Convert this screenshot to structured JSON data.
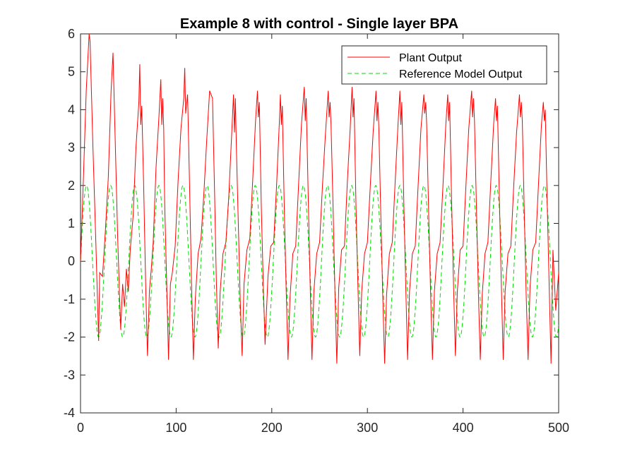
{
  "chart_data": {
    "type": "line",
    "title": "Example 8 with control - Single layer BPA",
    "xlabel": "",
    "ylabel": "",
    "xlim": [
      0,
      500
    ],
    "ylim": [
      -4,
      6
    ],
    "x_ticks": [
      0,
      100,
      200,
      300,
      400,
      500
    ],
    "y_ticks": [
      -4,
      -3,
      -2,
      -1,
      0,
      1,
      2,
      3,
      4,
      5,
      6
    ],
    "grid": false,
    "legend_position": "top-right",
    "series": [
      {
        "name": "Plant Output",
        "color": "#ff0000",
        "style": "solid",
        "x": [
          0,
          3,
          6,
          9,
          10,
          13,
          16,
          19,
          20,
          23,
          26,
          29,
          32,
          34,
          36,
          39,
          42,
          44,
          46,
          48,
          50,
          52,
          55,
          58,
          61,
          62,
          63,
          64,
          66,
          68,
          70,
          72,
          74,
          76,
          79,
          82,
          84,
          85,
          86,
          87,
          88,
          90,
          92,
          94,
          96,
          99,
          102,
          105,
          108,
          109,
          110,
          112,
          114,
          116,
          118,
          120,
          123,
          126,
          129,
          132,
          135,
          138,
          140,
          142,
          144,
          146,
          149,
          152,
          155,
          158,
          160,
          161,
          162,
          163,
          165,
          167,
          169,
          171,
          174,
          177,
          180,
          183,
          185,
          186,
          187,
          189,
          191,
          193,
          196,
          199,
          202,
          205,
          208,
          209,
          210,
          211,
          213,
          215,
          217,
          219,
          222,
          225,
          228,
          231,
          234,
          235,
          236,
          238,
          240,
          242,
          244,
          247,
          250,
          253,
          256,
          259,
          260,
          261,
          262,
          264,
          266,
          268,
          270,
          273,
          276,
          279,
          282,
          284,
          285,
          286,
          288,
          290,
          292,
          294,
          297,
          300,
          303,
          306,
          309,
          310,
          311,
          312,
          314,
          316,
          318,
          320,
          323,
          326,
          329,
          332,
          334,
          335,
          336,
          338,
          340,
          342,
          344,
          347,
          350,
          353,
          356,
          359,
          360,
          361,
          362,
          364,
          366,
          368,
          370,
          373,
          376,
          379,
          382,
          384,
          385,
          386,
          388,
          390,
          392,
          394,
          397,
          400,
          403,
          406,
          409,
          410,
          411,
          412,
          414,
          416,
          418,
          420,
          423,
          426,
          429,
          432,
          434,
          435,
          436,
          438,
          440,
          442,
          444,
          447,
          450,
          453,
          456,
          459,
          460,
          461,
          462,
          464,
          466,
          468,
          470,
          473,
          476,
          479,
          482,
          484,
          485,
          486,
          488,
          490,
          492,
          494,
          497,
          500
        ],
        "y": [
          0.0,
          2.2,
          4.5,
          6.0,
          5.8,
          3.0,
          0.5,
          -2.1,
          -0.3,
          -0.4,
          0.8,
          2.2,
          4.5,
          5.5,
          3.5,
          0.5,
          -1.8,
          -0.6,
          -1.2,
          -0.2,
          -0.8,
          0.3,
          1.2,
          3.0,
          4.2,
          5.2,
          3.6,
          4.1,
          2.0,
          -0.5,
          -2.5,
          -0.8,
          -0.2,
          0.5,
          2.5,
          3.8,
          4.8,
          3.6,
          4.3,
          3.5,
          1.5,
          -0.5,
          -2.6,
          -0.6,
          -0.3,
          0.4,
          2.1,
          3.5,
          4.3,
          5.1,
          3.9,
          4.4,
          2.0,
          -0.5,
          -2.6,
          -1.0,
          0.2,
          0.6,
          1.8,
          3.2,
          4.5,
          4.3,
          2.0,
          -0.5,
          -2.3,
          -0.8,
          0.2,
          0.5,
          1.7,
          3.3,
          4.4,
          3.4,
          4.3,
          3.0,
          1.0,
          -1.0,
          -2.5,
          -0.6,
          0.3,
          0.6,
          2.1,
          3.7,
          4.5,
          3.8,
          4.2,
          1.5,
          -0.5,
          -2.2,
          -0.4,
          0.4,
          0.5,
          2.0,
          3.7,
          4.4,
          3.6,
          4.1,
          1.5,
          -0.7,
          -2.6,
          -1.0,
          0.2,
          0.4,
          2.0,
          3.6,
          4.6,
          3.7,
          4.3,
          1.8,
          -0.5,
          -2.6,
          -0.8,
          0.2,
          0.5,
          2.0,
          3.3,
          4.5,
          3.8,
          4.2,
          3.6,
          1.5,
          -0.8,
          -2.7,
          -0.7,
          0.3,
          0.4,
          2.1,
          3.5,
          4.6,
          3.8,
          4.3,
          1.5,
          -0.6,
          -2.5,
          -0.8,
          0.2,
          0.5,
          2.0,
          3.4,
          4.5,
          3.7,
          4.2,
          3.5,
          1.2,
          -0.9,
          -2.7,
          -0.9,
          0.2,
          0.5,
          2.1,
          3.6,
          4.5,
          3.6,
          4.2,
          1.6,
          -0.6,
          -2.6,
          -0.8,
          0.2,
          0.4,
          2.0,
          3.5,
          4.4,
          3.9,
          4.2,
          3.6,
          1.3,
          -0.8,
          -2.6,
          -0.8,
          0.2,
          0.5,
          2.0,
          3.6,
          4.4,
          3.7,
          4.2,
          1.6,
          -0.6,
          -2.5,
          -0.8,
          0.3,
          0.4,
          2.0,
          3.5,
          4.5,
          3.8,
          4.3,
          3.7,
          1.4,
          -0.8,
          -2.6,
          -0.9,
          0.2,
          0.5,
          2.1,
          3.6,
          4.3,
          3.7,
          4.1,
          1.6,
          -0.6,
          -2.6,
          -0.8,
          0.2,
          0.4,
          2.0,
          3.4,
          4.4,
          3.8,
          4.2,
          3.7,
          1.3,
          -0.9,
          -2.6,
          -0.7,
          0.3,
          0.5,
          2.1,
          3.6,
          4.2,
          3.7,
          4.0,
          1.5,
          -0.6,
          -2.7,
          0.3,
          -1.3,
          -0.3
        ]
      },
      {
        "name": "Reference Model Output",
        "color": "#00dd00",
        "style": "dashed",
        "period": 25.2,
        "amplitude": 2.0,
        "x_start": 0,
        "x_end": 500
      }
    ]
  }
}
